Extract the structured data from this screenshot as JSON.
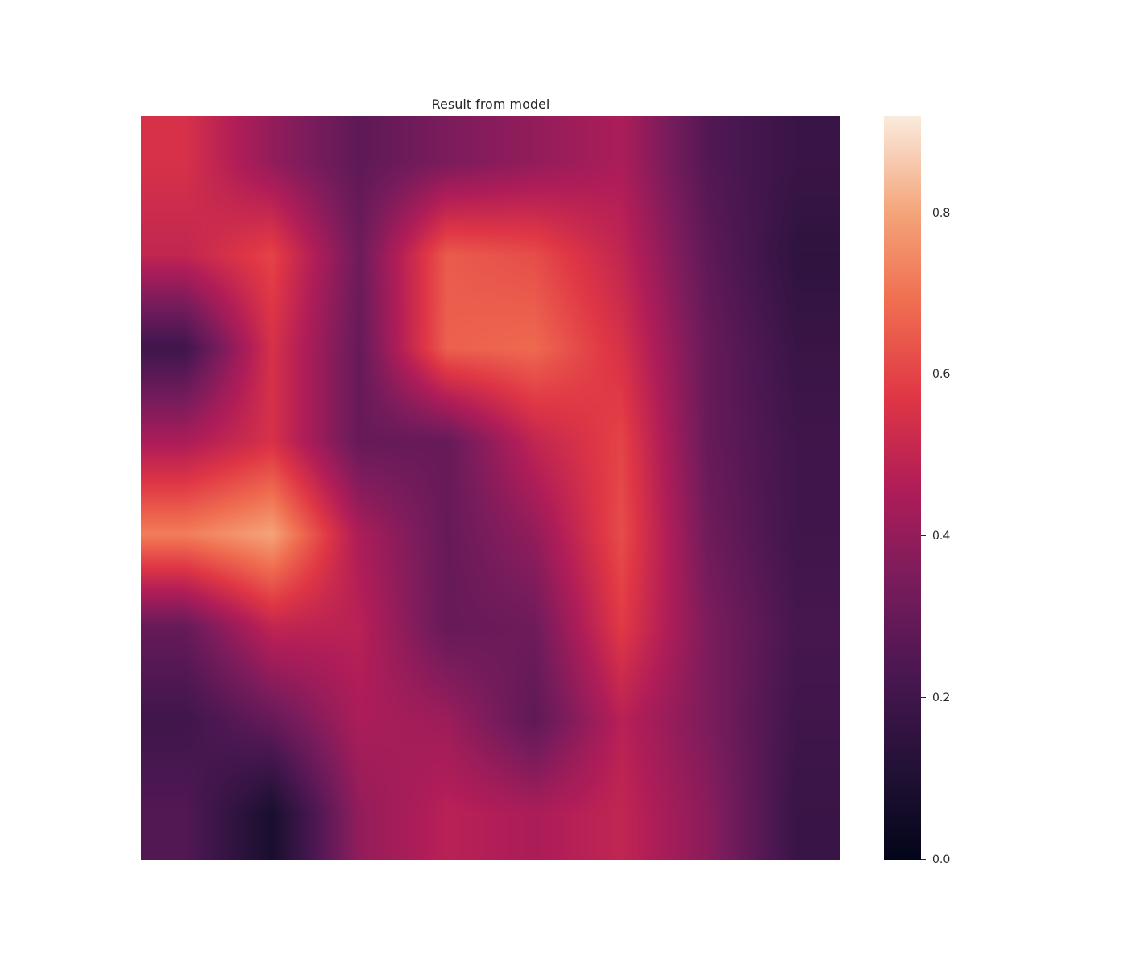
{
  "chart_data": {
    "type": "heatmap",
    "title": "Result from model",
    "xlabel": "",
    "ylabel": "",
    "grid": false,
    "colormap": "rocket",
    "colorbar": {
      "position": "right",
      "vmin": 0.0,
      "vmax": 0.92,
      "ticks": [
        0.0,
        0.2,
        0.4,
        0.6,
        0.8
      ],
      "tick_labels": [
        "0.0",
        "0.2",
        "0.4",
        "0.6",
        "0.8"
      ]
    },
    "grid_size": [
      8,
      8
    ],
    "values": [
      [
        0.55,
        0.4,
        0.28,
        0.35,
        0.4,
        0.45,
        0.25,
        0.18
      ],
      [
        0.5,
        0.6,
        0.32,
        0.65,
        0.62,
        0.5,
        0.28,
        0.15
      ],
      [
        0.2,
        0.55,
        0.3,
        0.66,
        0.68,
        0.55,
        0.3,
        0.18
      ],
      [
        0.45,
        0.55,
        0.3,
        0.3,
        0.5,
        0.6,
        0.3,
        0.2
      ],
      [
        0.72,
        0.8,
        0.45,
        0.3,
        0.4,
        0.62,
        0.32,
        0.2
      ],
      [
        0.3,
        0.5,
        0.48,
        0.3,
        0.32,
        0.58,
        0.35,
        0.22
      ],
      [
        0.2,
        0.3,
        0.45,
        0.42,
        0.28,
        0.48,
        0.35,
        0.2
      ],
      [
        0.25,
        0.08,
        0.4,
        0.48,
        0.45,
        0.5,
        0.38,
        0.18
      ]
    ]
  }
}
